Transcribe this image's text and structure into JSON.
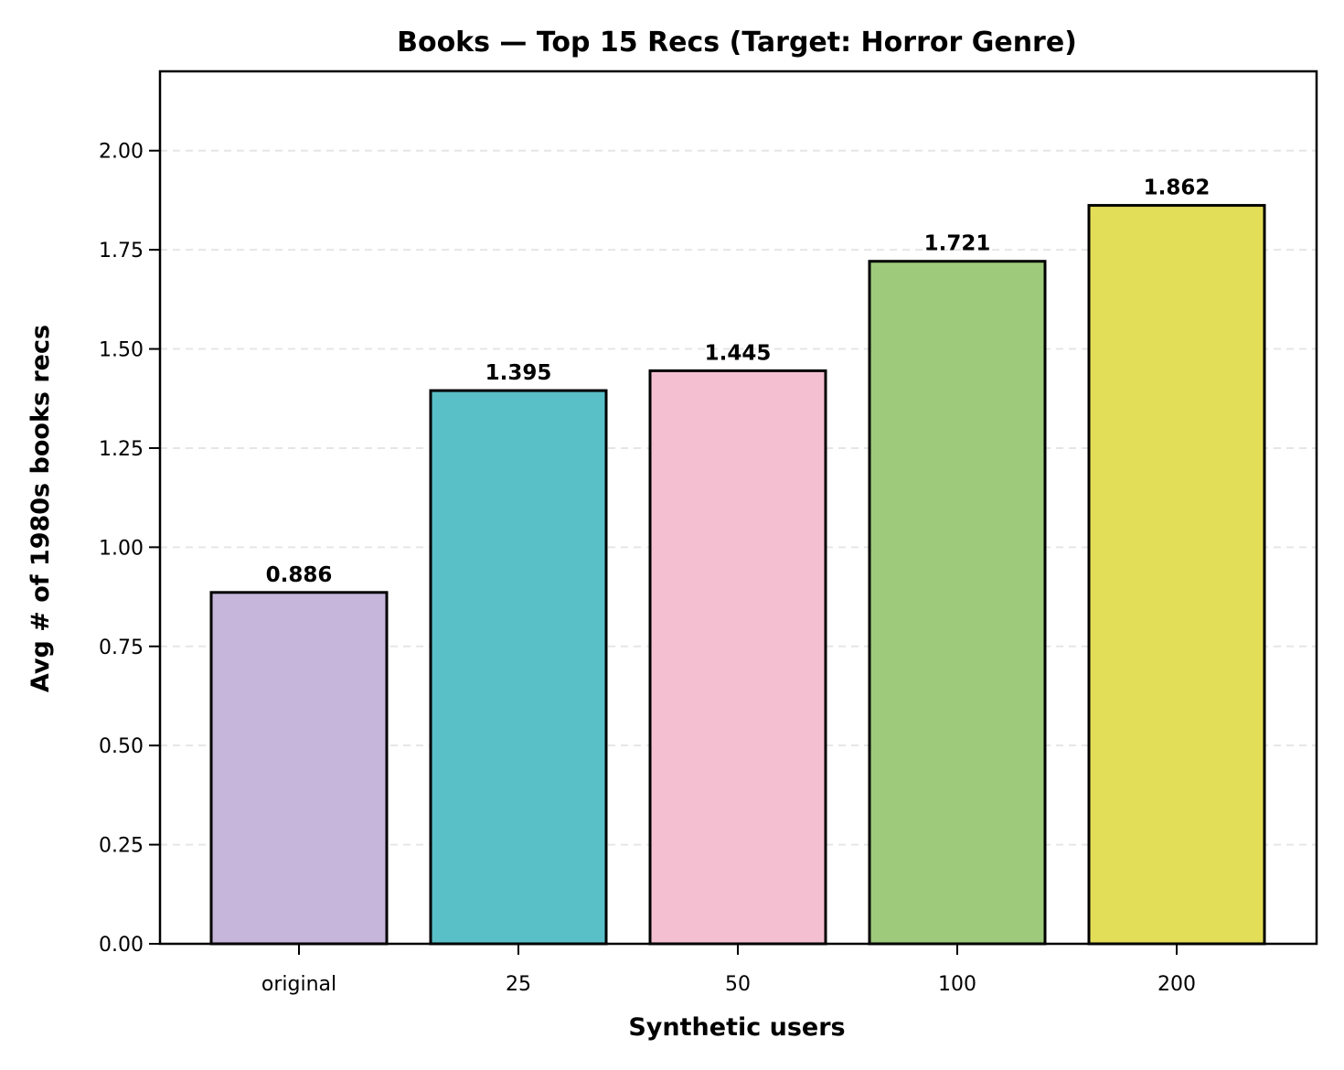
{
  "chart_data": {
    "type": "bar",
    "title": "Books — Top 15 Recs (Target: Horror Genre)",
    "xlabel": "Synthetic users",
    "ylabel": "Avg # of 1980s books recs",
    "categories": [
      "original",
      "25",
      "50",
      "100",
      "200"
    ],
    "values": [
      0.886,
      1.395,
      1.445,
      1.721,
      1.862
    ],
    "value_labels": [
      "0.886",
      "1.395",
      "1.445",
      "1.721",
      "1.862"
    ],
    "colors": [
      "#c7b6db",
      "#5ac0c7",
      "#f4c0d1",
      "#9ecb7b",
      "#e3de58"
    ],
    "ylim": [
      0,
      2.2
    ],
    "yticks": [
      0,
      0.25,
      0.5,
      0.75,
      1.0,
      1.25,
      1.5,
      1.75,
      2.0
    ],
    "ytick_labels": [
      "0.00",
      "0.25",
      "0.50",
      "0.75",
      "1.00",
      "1.25",
      "1.50",
      "1.75",
      "2.00"
    ],
    "grid": "y-dashed"
  }
}
